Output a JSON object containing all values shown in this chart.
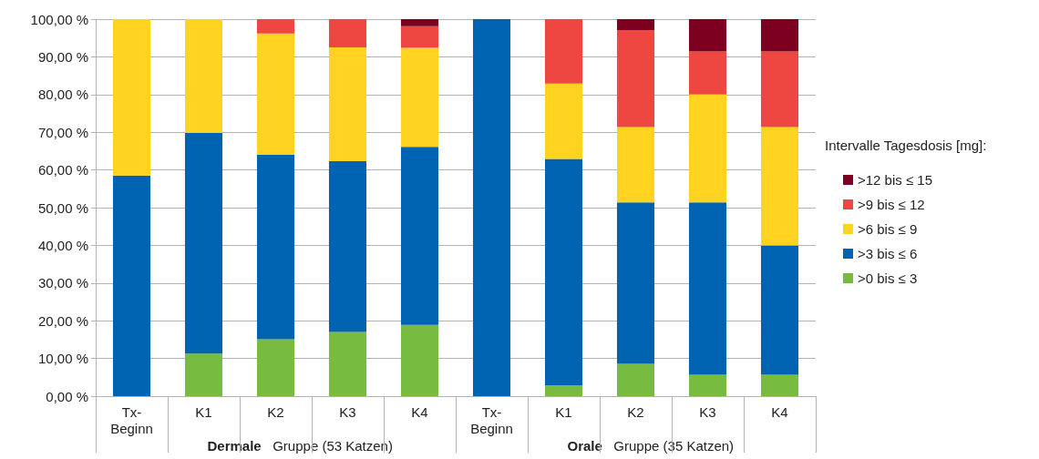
{
  "chart_data": {
    "type": "bar",
    "stacked": true,
    "categories": [
      "Tx-\nBeginn",
      "K1",
      "K2",
      "K3",
      "K4",
      "Tx-\nBeginn",
      "K1",
      "K2",
      "K3",
      "K4"
    ],
    "series": [
      {
        "name": ">0 bis ≤ 3",
        "color": "#77bc41",
        "values": [
          0,
          11.3,
          15.1,
          17.0,
          18.9,
          0,
          2.9,
          8.6,
          5.7,
          5.7
        ]
      },
      {
        "name": ">3 bis ≤ 6",
        "color": "#0063b1",
        "values": [
          58.5,
          58.5,
          49.0,
          45.3,
          47.2,
          100,
          60.0,
          42.8,
          45.7,
          34.3
        ]
      },
      {
        "name": ">6 bis ≤ 9",
        "color": "#ffd320",
        "values": [
          41.5,
          30.2,
          32.1,
          30.2,
          26.3,
          0,
          20.0,
          20.0,
          28.6,
          31.4
        ]
      },
      {
        "name": ">9 bis ≤ 12",
        "color": "#ee4640",
        "values": [
          0,
          0,
          3.8,
          7.5,
          5.7,
          0,
          17.1,
          25.7,
          11.4,
          20.0
        ]
      },
      {
        "name": ">12 bis ≤ 15",
        "color": "#7e0021",
        "values": [
          0,
          0,
          0,
          0,
          1.9,
          0,
          0,
          2.9,
          8.6,
          8.6
        ]
      }
    ],
    "ylim": [
      0,
      100
    ],
    "yticks": [
      {
        "value": 0,
        "label": "0,00 %"
      },
      {
        "value": 10,
        "label": "10,00 %"
      },
      {
        "value": 20,
        "label": "20,00 %"
      },
      {
        "value": 30,
        "label": "30,00 %"
      },
      {
        "value": 40,
        "label": "40,00 %"
      },
      {
        "value": 50,
        "label": "50,00 %"
      },
      {
        "value": 60,
        "label": "60,00 %"
      },
      {
        "value": 70,
        "label": "70,00 %"
      },
      {
        "value": 80,
        "label": "80,00 %"
      },
      {
        "value": 90,
        "label": "90,00 %"
      },
      {
        "value": 100,
        "label": "100,00 %"
      }
    ],
    "grid": "y",
    "legend": "right",
    "legend_title": "Intervalle Tagesdosis [mg]:",
    "annotations": [
      "Dermale Gruppe (53 Katzen)",
      "Orale Gruppe (35 Katzen)"
    ]
  }
}
